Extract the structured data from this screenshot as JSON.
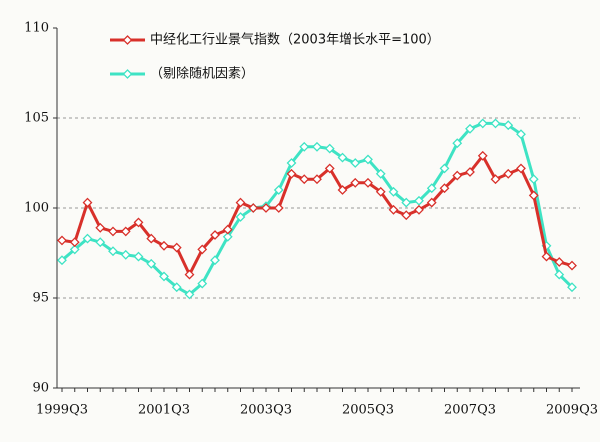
{
  "chart_data": {
    "type": "line",
    "categories": [
      "1999Q3",
      null,
      null,
      null,
      null,
      null,
      null,
      null,
      "2001Q3",
      null,
      null,
      null,
      null,
      null,
      null,
      null,
      "2003Q3",
      null,
      null,
      null,
      null,
      null,
      null,
      null,
      "2005Q3",
      null,
      null,
      null,
      null,
      null,
      null,
      null,
      "2007Q3",
      null,
      null,
      null,
      null,
      null,
      null,
      null,
      "2009Q3"
    ],
    "series": [
      {
        "name": "中经化工行业景气指数（2003年增长水平=100）",
        "color": "#d8302a",
        "values": [
          98.2,
          98.1,
          100.3,
          98.9,
          98.7,
          98.7,
          99.2,
          98.3,
          97.9,
          97.8,
          96.3,
          97.7,
          98.5,
          98.8,
          100.3,
          100,
          100,
          100,
          101.9,
          101.6,
          101.6,
          102.2,
          101,
          101.4,
          101.4,
          100.9,
          99.9,
          99.6,
          99.9,
          100.3,
          101.1,
          101.8,
          102,
          102.9,
          101.6,
          101.9,
          102.2,
          100.7,
          97.3,
          97,
          96.8
        ]
      },
      {
        "name": "（剔除随机因素）",
        "color": "#3ee3c4",
        "values": [
          97.1,
          97.7,
          98.3,
          98.1,
          97.6,
          97.4,
          97.3,
          96.9,
          96.2,
          95.6,
          95.2,
          95.8,
          97.1,
          98.4,
          99.5,
          100,
          100.1,
          101,
          102.5,
          103.4,
          103.4,
          103.3,
          102.8,
          102.5,
          102.7,
          101.9,
          100.9,
          100.3,
          100.4,
          101.1,
          102.2,
          103.6,
          104.4,
          104.7,
          104.7,
          104.6,
          104.1,
          101.6,
          97.9,
          96.3,
          95.6
        ]
      }
    ],
    "ylim": [
      90,
      110
    ],
    "yticks": [
      90,
      95,
      100,
      105,
      110
    ],
    "grid": true
  }
}
